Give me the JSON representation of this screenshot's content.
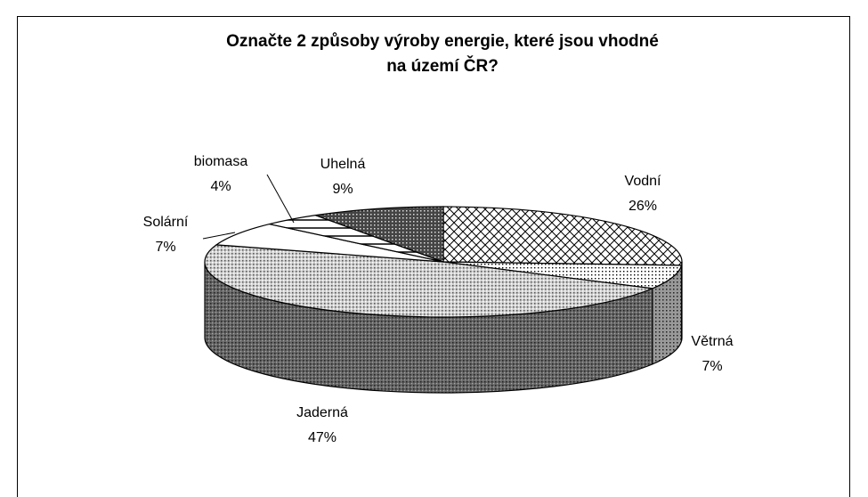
{
  "chart_data": {
    "type": "pie3d",
    "title": [
      "Označte 2 způsoby výroby energie, které jsou vhodné",
      "na území ČR?"
    ],
    "categories": [
      "Vodní",
      "Větrná",
      "Jaderná",
      "Solární",
      "biomasa",
      "Uhelná"
    ],
    "values": [
      26,
      7,
      47,
      7,
      4,
      9
    ],
    "value_labels": [
      "26%",
      "7%",
      "47%",
      "7%",
      "4%",
      "9%"
    ]
  }
}
